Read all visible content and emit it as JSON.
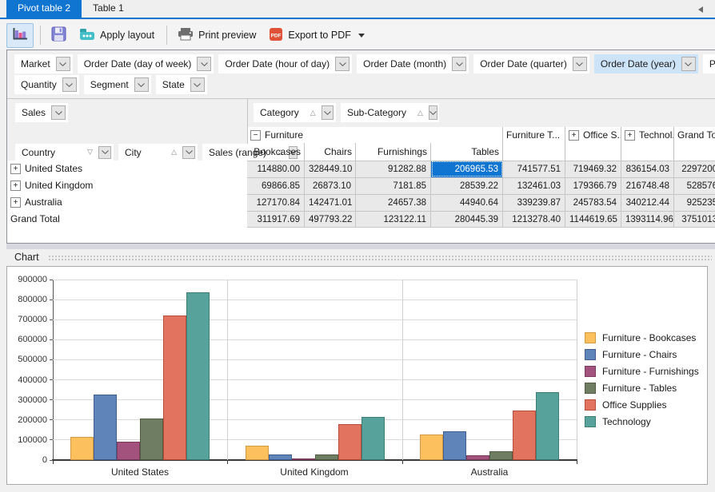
{
  "tabs": {
    "active": "Pivot table 2",
    "inactive": "Table 1"
  },
  "toolbar": {
    "apply_layout": "Apply layout",
    "print_preview": "Print preview",
    "export_pdf": "Export to PDF"
  },
  "filters": {
    "row1": [
      {
        "label": "Market",
        "highlighted": false
      },
      {
        "label": "Order Date (day of week)",
        "highlighted": false
      },
      {
        "label": "Order Date (hour of day)",
        "highlighted": false
      },
      {
        "label": "Order Date (month)",
        "highlighted": false
      },
      {
        "label": "Order Date (quarter)",
        "highlighted": false
      },
      {
        "label": "Order Date (year)",
        "highlighted": true
      },
      {
        "label": "Profit",
        "highlighted": false
      }
    ],
    "row2": [
      {
        "label": "Quantity",
        "highlighted": false
      },
      {
        "label": "Segment",
        "highlighted": false
      },
      {
        "label": "State",
        "highlighted": false
      }
    ]
  },
  "pivot": {
    "data_field": {
      "label": "Sales"
    },
    "column_fields": [
      {
        "label": "Category",
        "sort": "asc"
      },
      {
        "label": "Sub-Category",
        "sort": "asc"
      }
    ],
    "row_fields": [
      {
        "label": "Country",
        "sort": "desc"
      },
      {
        "label": "City",
        "sort": "asc"
      },
      {
        "label": "Sales (range)",
        "sort": "asc"
      }
    ],
    "column_groups": [
      {
        "label": "Furniture",
        "state": "expanded"
      },
      {
        "label": "Furniture T...",
        "state": "none"
      },
      {
        "label": "Office S...",
        "state": "collapsed"
      },
      {
        "label": "Technol...",
        "state": "collapsed"
      },
      {
        "label": "Grand To...",
        "state": "none"
      }
    ],
    "sub_columns": [
      "Bookcases",
      "Chairs",
      "Furnishings",
      "Tables"
    ],
    "rows": [
      {
        "label": "United States",
        "expandable": true,
        "values": [
          "114880.00",
          "328449.10",
          "91282.88",
          "206965.53",
          "741577.51",
          "719469.32",
          "836154.03",
          "2297200"
        ]
      },
      {
        "label": "United Kingdom",
        "expandable": true,
        "values": [
          "69866.85",
          "26873.10",
          "7181.85",
          "28539.22",
          "132461.03",
          "179366.79",
          "216748.48",
          "528576"
        ]
      },
      {
        "label": "Australia",
        "expandable": true,
        "values": [
          "127170.84",
          "142471.01",
          "24657.38",
          "44940.64",
          "339239.87",
          "245783.54",
          "340212.44",
          "925235"
        ]
      },
      {
        "label": "Grand Total",
        "expandable": false,
        "values": [
          "311917.69",
          "497793.22",
          "123122.11",
          "280445.39",
          "1213278.40",
          "1144619.65",
          "1393114.96",
          "3751013"
        ]
      }
    ],
    "selected_cell": {
      "row": 0,
      "col": 3,
      "value": "206965.53"
    }
  },
  "chart_section": {
    "label": "Chart"
  },
  "chart_data": {
    "type": "bar",
    "categories": [
      "United States",
      "United Kingdom",
      "Australia"
    ],
    "series": [
      {
        "name": "Furniture - Bookcases",
        "color": "#FCC05E",
        "border": "#D19A43",
        "values": [
          114880,
          69867,
          127171
        ]
      },
      {
        "name": "Furniture - Chairs",
        "color": "#5E84BA",
        "border": "#3F5F91",
        "values": [
          328449,
          26873,
          142471
        ]
      },
      {
        "name": "Furniture - Furnishings",
        "color": "#A2527C",
        "border": "#7B3C5E",
        "values": [
          91283,
          7182,
          24657
        ]
      },
      {
        "name": "Furniture - Tables",
        "color": "#6F7D62",
        "border": "#4F5C42",
        "values": [
          206966,
          28539,
          44941
        ]
      },
      {
        "name": "Office Supplies",
        "color": "#E2735E",
        "border": "#B54F3C",
        "values": [
          719469,
          179367,
          245784
        ]
      },
      {
        "name": "Technology",
        "color": "#57A39B",
        "border": "#3B7E77",
        "values": [
          836154,
          216748,
          340212
        ]
      }
    ],
    "ylim": [
      0,
      900000
    ],
    "ytick_step": 100000,
    "grid": true,
    "legend_position": "right",
    "title": "",
    "xlabel": "",
    "ylabel": ""
  }
}
